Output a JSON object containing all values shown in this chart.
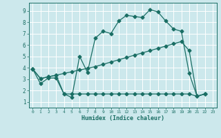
{
  "title": "",
  "xlabel": "Humidex (Indice chaleur)",
  "xlim": [
    -0.5,
    23.5
  ],
  "ylim": [
    0.5,
    9.7
  ],
  "yticks": [
    1,
    2,
    3,
    4,
    5,
    6,
    7,
    8,
    9
  ],
  "xticks": [
    0,
    1,
    2,
    3,
    4,
    5,
    6,
    7,
    8,
    9,
    10,
    11,
    12,
    13,
    14,
    15,
    16,
    17,
    18,
    19,
    20,
    21,
    22,
    23
  ],
  "bg_color": "#cce8ec",
  "grid_color": "#ffffff",
  "line_color": "#1a6e64",
  "line1_x": [
    0,
    1,
    2,
    3,
    4,
    5,
    6,
    7,
    8,
    9,
    10,
    11,
    12,
    13,
    14,
    15,
    16,
    17,
    18,
    19,
    20,
    21,
    22
  ],
  "line1_y": [
    3.9,
    2.6,
    3.1,
    3.1,
    1.7,
    1.4,
    5.0,
    3.6,
    6.6,
    7.2,
    7.0,
    8.1,
    8.6,
    8.5,
    8.4,
    9.1,
    8.9,
    8.1,
    7.4,
    7.2,
    3.5,
    1.5,
    1.7
  ],
  "line2_x": [
    0,
    1,
    2,
    3,
    4,
    5,
    6,
    7,
    8,
    9,
    10,
    11,
    12,
    13,
    14,
    15,
    16,
    17,
    18,
    19,
    20,
    21,
    22
  ],
  "line2_y": [
    3.9,
    3.05,
    3.2,
    3.35,
    3.5,
    3.65,
    3.8,
    3.95,
    4.1,
    4.3,
    4.5,
    4.7,
    4.9,
    5.1,
    5.3,
    5.5,
    5.7,
    5.9,
    6.1,
    6.3,
    5.5,
    1.5,
    1.7
  ],
  "line3_x": [
    0,
    1,
    2,
    3,
    4,
    5,
    6,
    7,
    8,
    9,
    10,
    11,
    12,
    13,
    14,
    15,
    16,
    17,
    18,
    19,
    20,
    21,
    22
  ],
  "line3_y": [
    3.9,
    3.05,
    3.2,
    3.35,
    1.7,
    1.7,
    1.7,
    1.7,
    1.7,
    1.7,
    1.7,
    1.7,
    1.7,
    1.7,
    1.7,
    1.7,
    1.7,
    1.7,
    1.7,
    1.7,
    1.7,
    1.5,
    1.7
  ]
}
